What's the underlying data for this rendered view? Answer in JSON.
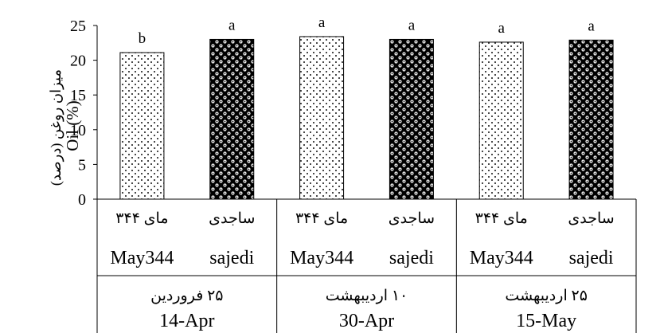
{
  "chart_data": {
    "type": "bar",
    "ylabel_fa": "میزان روغن (درصد)",
    "ylabel_en": "Oil (%)",
    "ylim": [
      0,
      25
    ],
    "yticks": [
      0,
      5,
      10,
      15,
      20,
      25
    ],
    "grid": false,
    "legend": "none",
    "groups": [
      {
        "date_fa": "۲۵ فروردین",
        "date_en": "14-Apr"
      },
      {
        "date_fa": "۱۰ اردیبهشت",
        "date_en": "30-Apr"
      },
      {
        "date_fa": "۲۵ اردیبهشت",
        "date_en": "15-May"
      }
    ],
    "bars": [
      {
        "group": 0,
        "cultivar_fa": "مای ۳۴۴",
        "cultivar_en": "May344",
        "value": 21.1,
        "letter": "b",
        "pattern": "dots"
      },
      {
        "group": 0,
        "cultivar_fa": "ساجدی",
        "cultivar_en": "sajedi",
        "value": 23.0,
        "letter": "a",
        "pattern": "checker"
      },
      {
        "group": 1,
        "cultivar_fa": "مای ۳۴۴",
        "cultivar_en": "May344",
        "value": 23.4,
        "letter": "a",
        "pattern": "dots"
      },
      {
        "group": 1,
        "cultivar_fa": "ساجدی",
        "cultivar_en": "sajedi",
        "value": 23.0,
        "letter": "a",
        "pattern": "checker"
      },
      {
        "group": 2,
        "cultivar_fa": "مای ۳۴۴",
        "cultivar_en": "May344",
        "value": 22.6,
        "letter": "a",
        "pattern": "dots"
      },
      {
        "group": 2,
        "cultivar_fa": "ساجدی",
        "cultivar_en": "sajedi",
        "value": 22.9,
        "letter": "a",
        "pattern": "checker"
      }
    ],
    "colors": {
      "bar_stroke": "#000000",
      "axis": "#000000",
      "background": "#ffffff"
    }
  }
}
